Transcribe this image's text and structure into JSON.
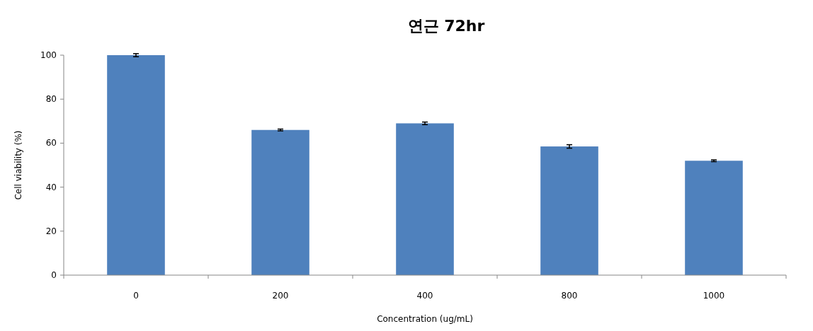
{
  "chart_data": {
    "type": "bar",
    "title": "연근 72hr",
    "xlabel": "Concentration (ug/mL)",
    "ylabel": "Cell viability (%)",
    "categories": [
      "0",
      "200",
      "400",
      "800",
      "1000"
    ],
    "values": [
      100,
      66,
      69,
      58.5,
      52
    ],
    "errors": [
      0.7,
      0.4,
      0.6,
      0.8,
      0.4
    ],
    "color": "#4f81bd",
    "ylim": [
      0,
      100
    ],
    "yticks": [
      0,
      20,
      40,
      60,
      80,
      100
    ],
    "grid": false
  }
}
